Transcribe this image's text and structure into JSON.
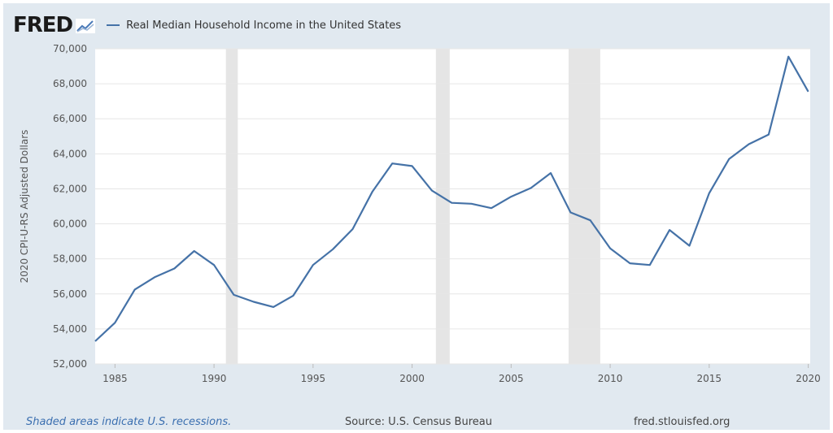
{
  "header": {
    "logo_text": "FRED",
    "logo_icon": "line-chart-icon"
  },
  "footer": {
    "recession_note": "Shaded areas indicate U.S. recessions.",
    "source": "Source: U.S. Census Bureau",
    "url": "fred.stlouisfed.org"
  },
  "colors": {
    "background": "#e1e9f0",
    "plot_area": "#ffffff",
    "series_line": "#4572a7",
    "recession_shade": "#e5e5e5",
    "gridline": "#e6e6e6"
  },
  "chart_data": {
    "type": "line",
    "title": "",
    "xlabel": "",
    "ylabel": "2020 CPI-U-RS Adjusted Dollars",
    "xlim": [
      1984,
      2020.1
    ],
    "ylim": [
      52000,
      70000
    ],
    "x_ticks": [
      1985,
      1990,
      1995,
      2000,
      2005,
      2010,
      2015,
      2020
    ],
    "y_ticks": [
      52000,
      54000,
      56000,
      58000,
      60000,
      62000,
      64000,
      66000,
      68000,
      70000
    ],
    "y_tick_labels": [
      "52,000",
      "54,000",
      "56,000",
      "58,000",
      "60,000",
      "62,000",
      "64,000",
      "66,000",
      "68,000",
      "70,000"
    ],
    "grid": "horizontal",
    "legend_position": "top-left",
    "recessions": [
      {
        "start": 1990.6,
        "end": 1991.2
      },
      {
        "start": 2001.2,
        "end": 2001.9
      },
      {
        "start": 2007.9,
        "end": 2009.5
      }
    ],
    "series": [
      {
        "name": "Real Median Household Income in the United States",
        "x": [
          1984,
          1985,
          1986,
          1987,
          1988,
          1989,
          1990,
          1991,
          1992,
          1993,
          1994,
          1995,
          1996,
          1997,
          1998,
          1999,
          2000,
          2001,
          2002,
          2003,
          2004,
          2005,
          2006,
          2007,
          2008,
          2009,
          2010,
          2011,
          2012,
          2013,
          2014,
          2015,
          2016,
          2017,
          2018,
          2019,
          2020
        ],
        "values": [
          53300,
          54350,
          56250,
          56950,
          57450,
          58450,
          57650,
          55950,
          55550,
          55250,
          55900,
          57650,
          58550,
          59700,
          61850,
          63450,
          63300,
          61900,
          61200,
          61150,
          60900,
          61550,
          62050,
          62900,
          60650,
          60200,
          58600,
          57750,
          57650,
          59650,
          58750,
          61750,
          63700,
          64550,
          65100,
          69550,
          67550
        ]
      }
    ]
  }
}
